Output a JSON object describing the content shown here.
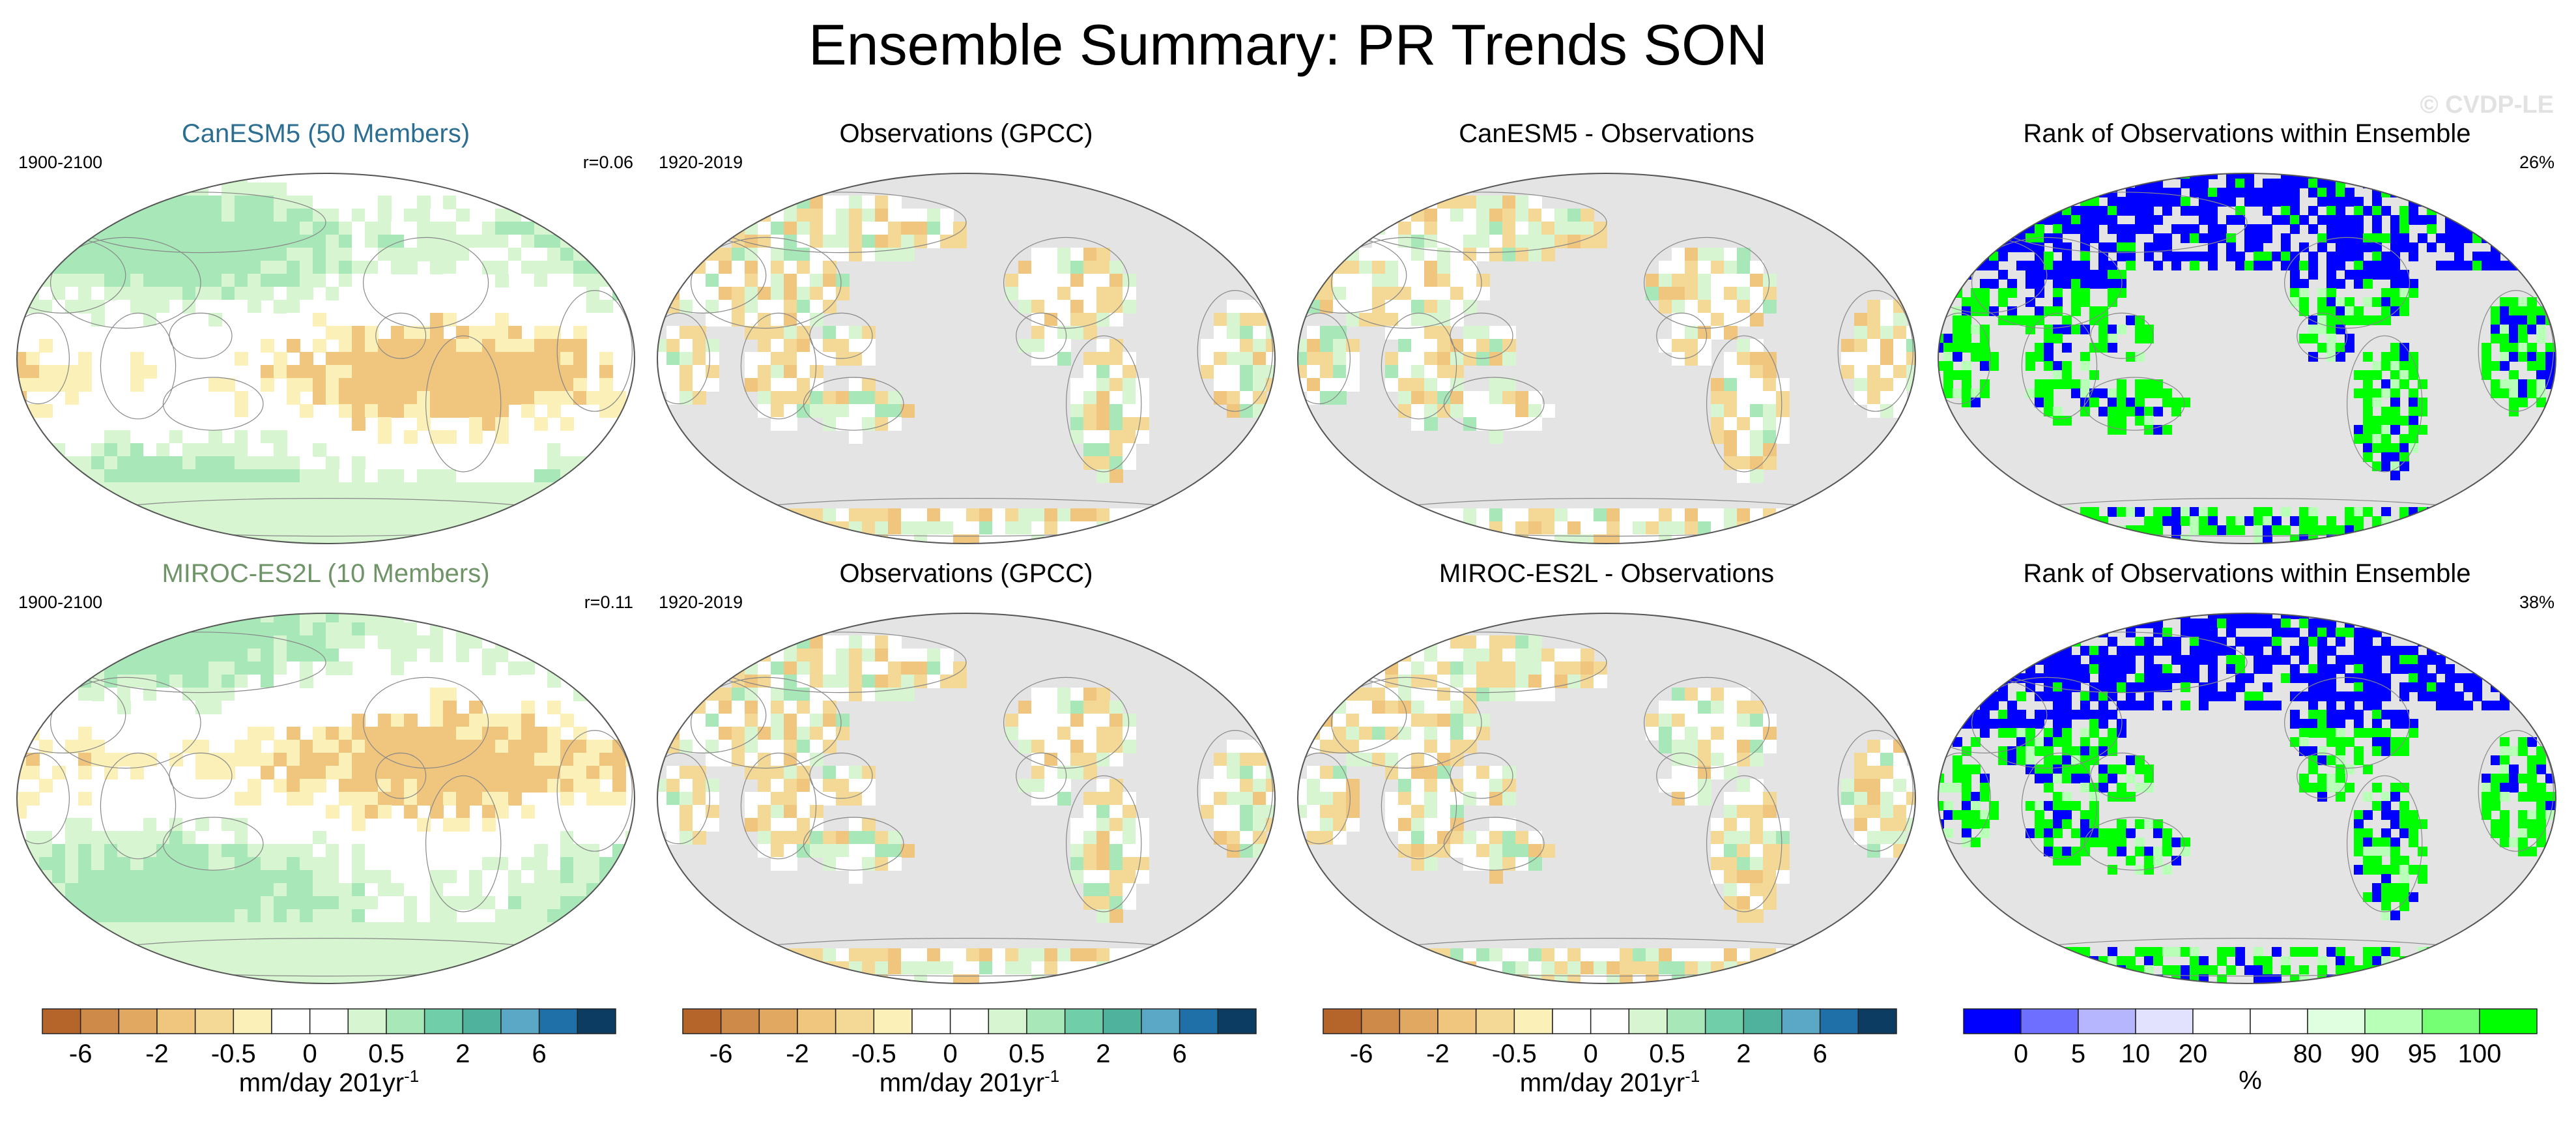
{
  "title": "Ensemble Summary: PR Trends SON",
  "copyright": "© CVDP-LE",
  "rows": [
    {
      "model": {
        "title": "CanESM5 (50 Members)",
        "period": "1900-2100",
        "stat": "r=0.06",
        "field": "model_trend"
      },
      "obs": {
        "title": "Observations (GPCC)",
        "period": "1920-2019",
        "field": "obs_trend"
      },
      "diff": {
        "title": "CanESM5 - Observations",
        "field": "difference"
      },
      "rank": {
        "title": "Rank of Observations within Ensemble",
        "stat": "26%",
        "field": "rank"
      }
    },
    {
      "model": {
        "title": "MIROC-ES2L (10 Members)",
        "period": "1900-2100",
        "stat": "r=0.11",
        "field": "model_trend"
      },
      "obs": {
        "title": "Observations (GPCC)",
        "period": "1920-2019",
        "field": "obs_trend"
      },
      "diff": {
        "title": "MIROC-ES2L - Observations",
        "field": "difference"
      },
      "rank": {
        "title": "Rank of Observations within Ensemble",
        "stat": "38%",
        "field": "rank"
      }
    }
  ],
  "colorbars": {
    "trend": {
      "label": "mm/day 201yr",
      "label_sup": "-1",
      "tick_labels": [
        "-6",
        "-2",
        "-0.5",
        "0",
        "0.5",
        "2",
        "6"
      ],
      "colors": [
        "#b5652a",
        "#cd8a48",
        "#e0a860",
        "#f0c57d",
        "#f3d896",
        "#fbf1b8",
        "#ffffff",
        "#ffffff",
        "#d6f5d0",
        "#a8e8b8",
        "#70cfa8",
        "#4fb29c",
        "#5aa7c6",
        "#1f70a8",
        "#0c3c62"
      ]
    },
    "rank": {
      "label": "%",
      "tick_labels": [
        "0",
        "5",
        "10",
        "20",
        "80",
        "90",
        "95",
        "100"
      ],
      "colors": [
        "#0000ff",
        "#6e6eff",
        "#b6b6ff",
        "#e2e2ff",
        "#ffffff",
        "#ffffff",
        "#e0ffe0",
        "#b8ffb8",
        "#74ff74",
        "#00ff00"
      ]
    }
  },
  "chart_data": [
    {
      "type": "heatmap",
      "title": "CanESM5 (50 Members)",
      "period": "1900-2100",
      "pattern_correlation": 0.06,
      "units": "mm/day 201yr-1",
      "levels": [
        -6,
        -2,
        -0.5,
        0,
        0.5,
        2,
        6
      ]
    },
    {
      "type": "heatmap",
      "title": "Observations (GPCC)",
      "period": "1920-2019",
      "units": "mm/day 201yr-1"
    },
    {
      "type": "heatmap",
      "title": "CanESM5 - Observations",
      "units": "mm/day 201yr-1"
    },
    {
      "type": "heatmap",
      "title": "Rank of Observations within Ensemble",
      "area_fraction_percent": 26,
      "units": "%",
      "levels": [
        0,
        5,
        10,
        20,
        80,
        90,
        95,
        100
      ]
    },
    {
      "type": "heatmap",
      "title": "MIROC-ES2L (10 Members)",
      "period": "1900-2100",
      "pattern_correlation": 0.11,
      "units": "mm/day 201yr-1",
      "levels": [
        -6,
        -2,
        -0.5,
        0,
        0.5,
        2,
        6
      ]
    },
    {
      "type": "heatmap",
      "title": "Observations (GPCC)",
      "period": "1920-2019",
      "units": "mm/day 201yr-1"
    },
    {
      "type": "heatmap",
      "title": "MIROC-ES2L - Observations",
      "units": "mm/day 201yr-1"
    },
    {
      "type": "heatmap",
      "title": "Rank of Observations within Ensemble",
      "area_fraction_percent": 38,
      "units": "%",
      "levels": [
        0,
        5,
        10,
        20,
        80,
        90,
        95,
        100
      ]
    }
  ]
}
